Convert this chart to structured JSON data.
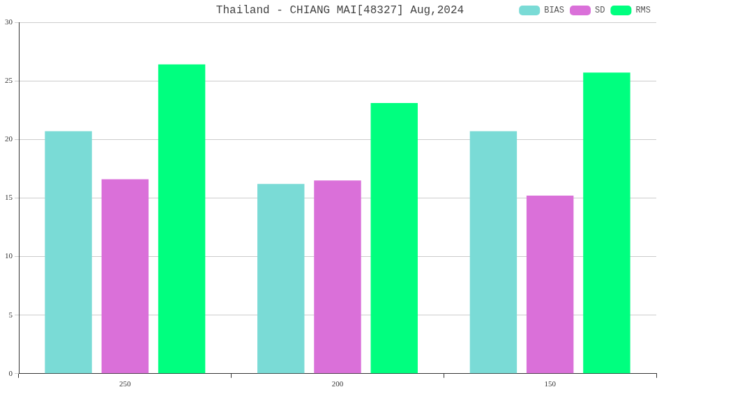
{
  "chart_data": {
    "type": "bar",
    "title": "Thailand - CHIANG MAI[48327] Aug,2024",
    "categories": [
      "250",
      "200",
      "150"
    ],
    "series": [
      {
        "name": "BIAS",
        "color": "#7adbd6",
        "values": [
          20.7,
          16.2,
          20.7
        ]
      },
      {
        "name": "SD",
        "color": "#da70d9",
        "values": [
          16.6,
          16.5,
          15.2
        ]
      },
      {
        "name": "RMS",
        "color": "#00ff7f",
        "values": [
          26.4,
          23.1,
          25.7
        ]
      }
    ],
    "ylim": [
      0,
      30
    ],
    "yticks": [
      0,
      5,
      10,
      15,
      20,
      25,
      30
    ],
    "grid": "y",
    "legend": "top right"
  }
}
